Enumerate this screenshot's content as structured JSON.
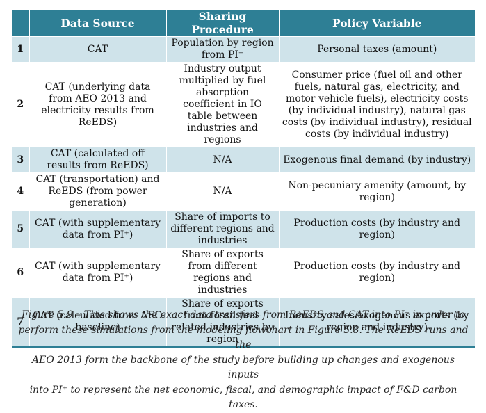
{
  "header": {
    "num": "",
    "source": "Data Source",
    "procedure": "Sharing Procedure",
    "policy": "Policy Variable"
  },
  "rows": [
    {
      "num": "1",
      "source": "CAT",
      "procedure": "Population by region from PI⁺",
      "policy": "Personal taxes (amount)"
    },
    {
      "num": "2",
      "source": "CAT (underlying data from AEO 2013 and electricity results from ReEDS)",
      "procedure": "Industry output multiplied by fuel absorption coefficient in IO table between industries and regions",
      "policy": "Consumer price (fuel oil and other fuels, natural gas, electricity, and motor vehicle fuels), electricity costs (by individual industry), natural gas costs (by individual industry), residual costs (by individual industry)"
    },
    {
      "num": "3",
      "source": "CAT (calculated off results from ReEDS)",
      "procedure": "N/A",
      "policy": "Exogenous final demand (by industry)"
    },
    {
      "num": "4",
      "source": "CAT (transportation) and ReEDS (from power generation)",
      "procedure": "N/A",
      "policy": "Non-pecuniary amenity (amount, by region)"
    },
    {
      "num": "5",
      "source": "CAT (with supplementary data from PI⁺)",
      "procedure": "Share of imports to different regions and industries",
      "policy": "Production costs (by industry and region)"
    },
    {
      "num": "6",
      "source": "CAT (with supplementary data from PI⁺)",
      "procedure": "Share of exports from different regions and industries",
      "policy": "Production costs (by industry and region)"
    },
    {
      "num": "7",
      "source": "CAT (calculated from AEO baseline)",
      "procedure": "Share of exports from fossil fuel-related industries by region",
      "policy": "Industry sales/exogenous exports (by region and industry)"
    }
  ],
  "caption": {
    "line1": "Figure 5.9 – This shows the exact data transfers from ReEDS and CAT into PI⁺ in order to",
    "line2": "perform these simulations from the modeling flowchart in Figure 5.8. The ReEDS runs and the",
    "line3": "AEO 2013 form the backbone of the study before building up changes and exogenous inputs",
    "line4": "into PI⁺ to represent the net economic, fiscal, and demographic impact of F&D carbon taxes."
  },
  "colors": {
    "header_bg": "#2e7f95",
    "band": "#cfe3ea",
    "header_text": "#ffffff"
  }
}
